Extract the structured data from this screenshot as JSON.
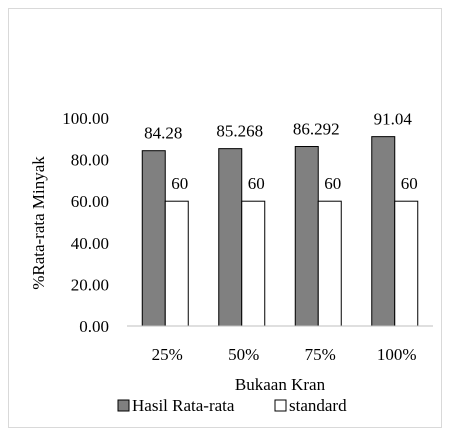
{
  "chart_data": {
    "type": "bar",
    "title": "",
    "xlabel": "Bukaan Kran",
    "ylabel": "%Rata-rata Minyak",
    "categories": [
      "25%",
      "50%",
      "75%",
      "100%"
    ],
    "ylim": [
      0,
      100
    ],
    "yticks": [
      "0.00",
      "20.00",
      "40.00",
      "60.00",
      "80.00",
      "100.00"
    ],
    "grid": false,
    "legend_position": "bottom",
    "series": [
      {
        "name": "Hasil Rata-rata",
        "values": [
          84.28,
          85.268,
          86.292,
          91.04
        ],
        "labels": [
          "84.28",
          "85.268",
          "86.292",
          "91.04"
        ],
        "fill": "#808080",
        "stroke": "#000000"
      },
      {
        "name": "standard",
        "values": [
          60,
          60,
          60,
          60
        ],
        "labels": [
          "60",
          "60",
          "60",
          "60"
        ],
        "fill": "#ffffff",
        "stroke": "#000000"
      }
    ]
  }
}
